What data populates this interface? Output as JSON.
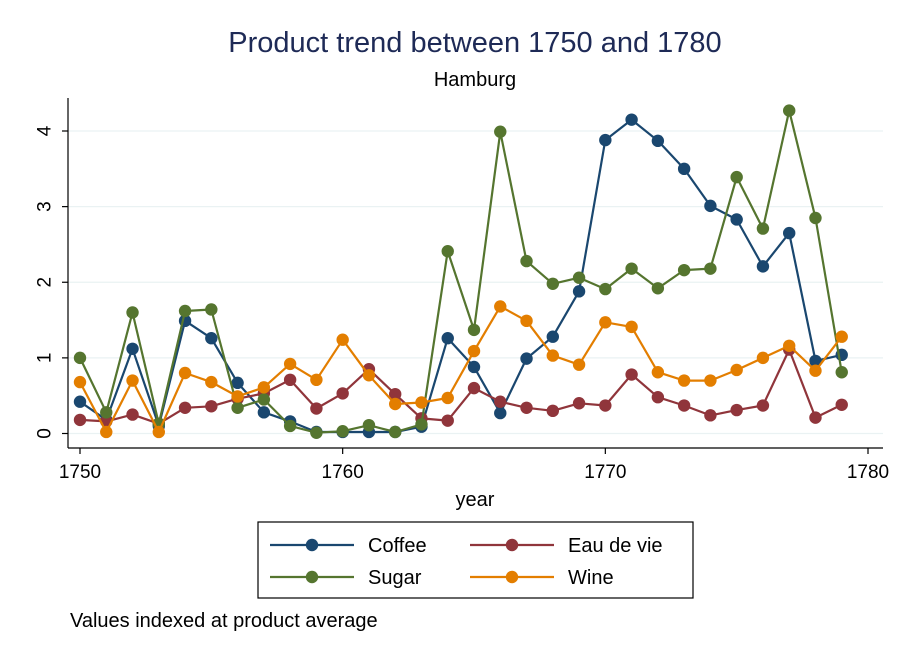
{
  "chart_data": {
    "type": "line",
    "title": "Product trend between 1750 and 1780",
    "subtitle": "Hamburg",
    "xlabel": "year",
    "ylabel": "",
    "note": "Values indexed at product average",
    "xlim": [
      1750,
      1780
    ],
    "ylim": [
      0,
      4.4
    ],
    "x_ticks": [
      "1750",
      "1760",
      "1770",
      "1780"
    ],
    "y_ticks": [
      "0",
      "1",
      "2",
      "3",
      "4"
    ],
    "grid": true,
    "legend_position": "bottom",
    "x": [
      1750,
      1751,
      1752,
      1753,
      1754,
      1755,
      1756,
      1757,
      1758,
      1759,
      1760,
      1761,
      1762,
      1763,
      1764,
      1765,
      1766,
      1767,
      1768,
      1769,
      1770,
      1771,
      1772,
      1773,
      1774,
      1775,
      1776,
      1777,
      1778,
      1779
    ],
    "series": [
      {
        "name": "Coffee",
        "color": "#1a476f",
        "values": [
          0.42,
          0.18,
          1.12,
          0.1,
          1.49,
          1.26,
          0.67,
          0.28,
          0.16,
          0.02,
          0.02,
          0.02,
          0.02,
          0.09,
          1.26,
          0.88,
          0.27,
          0.99,
          1.28,
          1.88,
          3.88,
          4.15,
          3.87,
          3.5,
          3.01,
          2.83,
          2.21,
          2.65,
          0.96,
          1.04
        ]
      },
      {
        "name": "Eau de vie",
        "color": "#90353b",
        "values": [
          0.18,
          0.16,
          0.25,
          0.13,
          0.34,
          0.36,
          0.46,
          0.53,
          0.71,
          0.33,
          0.53,
          0.85,
          0.52,
          0.2,
          0.17,
          0.6,
          0.42,
          0.34,
          0.3,
          0.4,
          0.37,
          0.78,
          0.48,
          0.37,
          0.24,
          0.31,
          0.37,
          1.11,
          0.21,
          0.38
        ]
      },
      {
        "name": "Sugar",
        "color": "#55752f",
        "values": [
          1.0,
          0.28,
          1.6,
          0.13,
          1.62,
          1.64,
          0.34,
          0.45,
          0.1,
          0.01,
          0.03,
          0.11,
          0.02,
          0.12,
          2.41,
          1.37,
          3.99,
          2.28,
          1.98,
          2.06,
          1.91,
          2.18,
          1.92,
          2.16,
          2.18,
          3.39,
          2.71,
          4.27,
          2.85,
          0.81
        ]
      },
      {
        "name": "Wine",
        "color": "#e37e00",
        "values": [
          0.68,
          0.02,
          0.7,
          0.02,
          0.8,
          0.68,
          0.49,
          0.61,
          0.92,
          0.71,
          1.24,
          0.77,
          0.39,
          0.41,
          0.47,
          1.09,
          1.68,
          1.49,
          1.03,
          0.91,
          1.47,
          1.41,
          0.81,
          0.7,
          0.7,
          0.84,
          1.0,
          1.16,
          0.83,
          1.28
        ]
      }
    ]
  }
}
